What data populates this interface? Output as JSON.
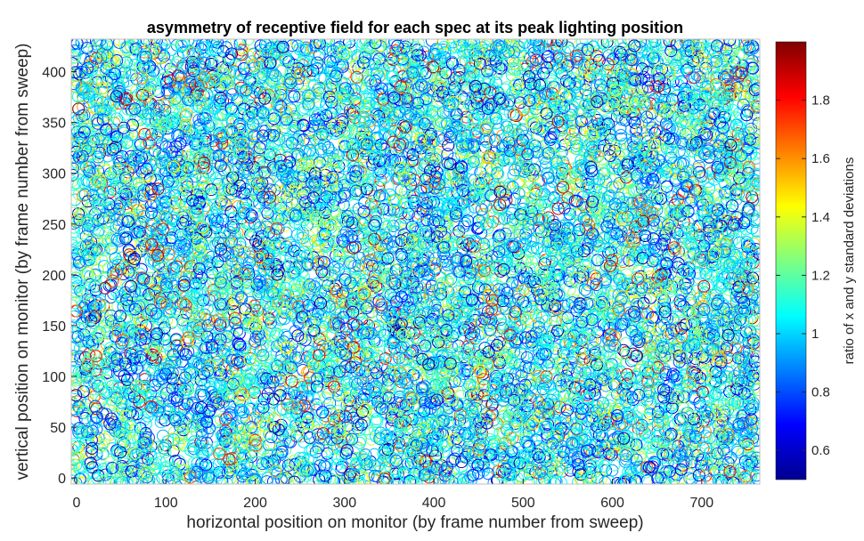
{
  "chart_data": {
    "type": "scatter",
    "title": "asymmetry of receptive field for each spec at its peak lighting position",
    "xlabel": "horizontal position on monitor (by frame number from sweep)",
    "ylabel": "vertical position on monitor (by frame number from sweep)",
    "xlim": [
      -6,
      765
    ],
    "ylim": [
      -6,
      432
    ],
    "xticks": [
      0,
      100,
      200,
      300,
      400,
      500,
      600,
      700
    ],
    "yticks": [
      0,
      50,
      100,
      150,
      200,
      250,
      300,
      350,
      400
    ],
    "marker": "open-circle",
    "point_count_approx": 12000,
    "points_note": "dense scatter of open circles covering the whole field, color-coded by ratio",
    "colormap": "jet",
    "colorbar": {
      "label": "ratio of x and y standard deviations",
      "range": [
        0.5,
        2.0
      ],
      "ticks": [
        "0.6",
        "0.8",
        "1",
        "1.2",
        "1.4",
        "1.6",
        "1.8"
      ]
    },
    "grid": false,
    "colors": {
      "jet_low": "#00008f",
      "jet_mid": "#00ffff",
      "jet_high": "#800000"
    }
  }
}
